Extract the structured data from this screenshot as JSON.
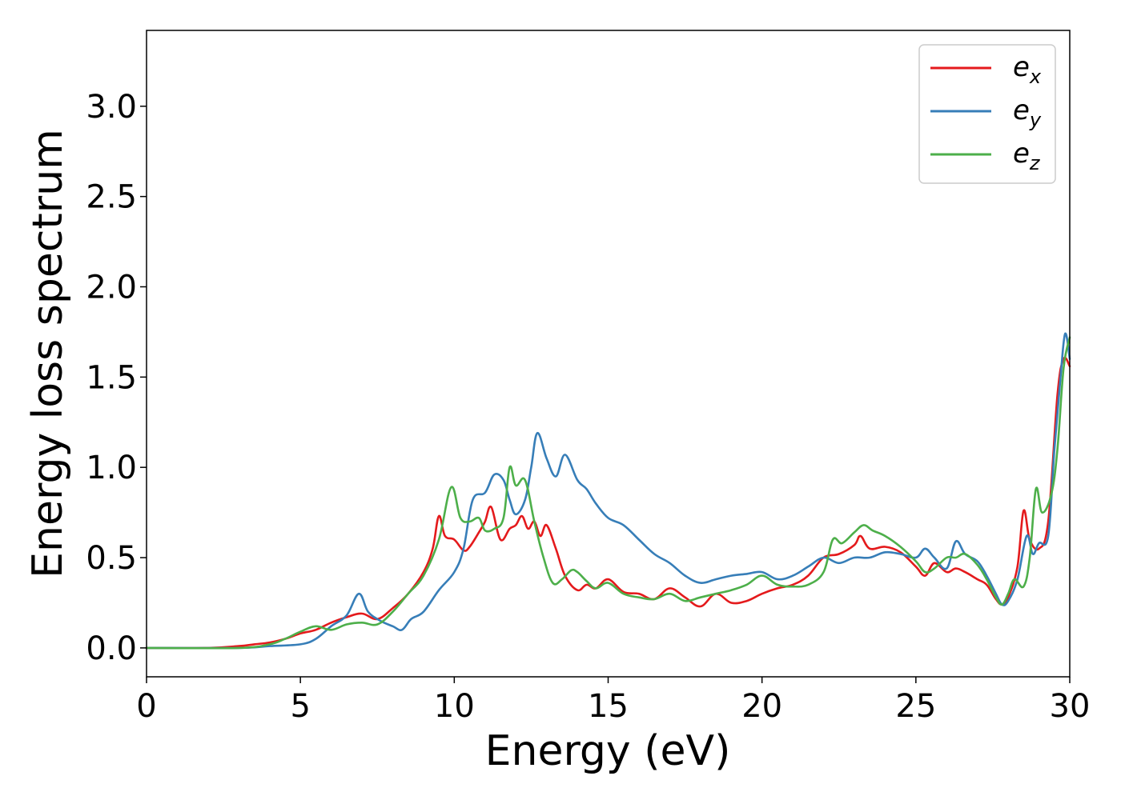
{
  "chart_data": {
    "type": "line",
    "xlabel": "Energy (eV)",
    "ylabel": "Energy loss spectrum",
    "xlim": [
      0,
      30
    ],
    "ylim": [
      -0.16,
      3.42
    ],
    "xticks": [
      "0",
      "5",
      "10",
      "15",
      "20",
      "25",
      "30"
    ],
    "yticks": [
      "0.0",
      "0.5",
      "1.0",
      "1.5",
      "2.0",
      "2.5",
      "3.0"
    ],
    "grid": false,
    "legend_position": "top-right",
    "series": [
      {
        "name": "e_x",
        "label_base": "e",
        "label_sub": "x",
        "color": "#e41a1c",
        "x": [
          0,
          2,
          3,
          3.5,
          4,
          4.5,
          5,
          5.5,
          6,
          6.5,
          7,
          7.5,
          8,
          8.5,
          9,
          9.3,
          9.5,
          9.7,
          10,
          10.3,
          10.5,
          10.8,
          11,
          11.2,
          11.5,
          11.8,
          12,
          12.2,
          12.4,
          12.6,
          12.8,
          13,
          13.3,
          13.6,
          14,
          14.3,
          14.6,
          15,
          15.5,
          16,
          16.5,
          17,
          17.5,
          18,
          18.5,
          19,
          19.5,
          20,
          20.5,
          21,
          21.5,
          22,
          22.5,
          23,
          23.2,
          23.5,
          24,
          24.5,
          25,
          25.3,
          25.6,
          26,
          26.3,
          26.6,
          27,
          27.3,
          27.6,
          27.8,
          28,
          28.3,
          28.5,
          28.7,
          29,
          29.3,
          29.6,
          29.8,
          30
        ],
        "y": [
          0.0,
          0.0,
          0.01,
          0.02,
          0.03,
          0.05,
          0.08,
          0.1,
          0.14,
          0.17,
          0.19,
          0.16,
          0.22,
          0.3,
          0.42,
          0.55,
          0.73,
          0.62,
          0.6,
          0.54,
          0.56,
          0.64,
          0.7,
          0.78,
          0.6,
          0.66,
          0.68,
          0.73,
          0.66,
          0.7,
          0.62,
          0.68,
          0.55,
          0.4,
          0.32,
          0.35,
          0.33,
          0.38,
          0.31,
          0.3,
          0.27,
          0.33,
          0.28,
          0.23,
          0.3,
          0.25,
          0.26,
          0.3,
          0.33,
          0.35,
          0.4,
          0.5,
          0.52,
          0.57,
          0.62,
          0.55,
          0.56,
          0.53,
          0.45,
          0.4,
          0.47,
          0.42,
          0.44,
          0.42,
          0.38,
          0.35,
          0.27,
          0.24,
          0.28,
          0.45,
          0.76,
          0.6,
          0.55,
          0.7,
          1.4,
          1.6,
          1.56
        ]
      },
      {
        "name": "e_y",
        "label_base": "e",
        "label_sub": "y",
        "color": "#377eb8",
        "x": [
          0,
          3,
          4,
          5,
          5.5,
          6,
          6.5,
          6.9,
          7.2,
          7.6,
          8,
          8.3,
          8.6,
          9,
          9.5,
          10,
          10.3,
          10.6,
          11,
          11.3,
          11.6,
          11.8,
          12,
          12.3,
          12.5,
          12.7,
          13,
          13.3,
          13.6,
          14,
          14.3,
          14.6,
          15,
          15.5,
          16,
          16.5,
          17,
          17.5,
          18,
          18.5,
          19,
          19.5,
          20,
          20.5,
          21,
          21.5,
          22,
          22.5,
          23,
          23.5,
          24,
          24.5,
          25,
          25.3,
          25.6,
          26,
          26.3,
          26.6,
          27,
          27.3,
          27.6,
          27.8,
          28,
          28.3,
          28.6,
          28.8,
          29,
          29.3,
          29.5,
          29.7,
          29.85,
          30
        ],
        "y": [
          0.0,
          0.0,
          0.01,
          0.02,
          0.05,
          0.12,
          0.18,
          0.3,
          0.2,
          0.15,
          0.12,
          0.1,
          0.16,
          0.2,
          0.32,
          0.42,
          0.55,
          0.82,
          0.86,
          0.96,
          0.93,
          0.82,
          0.74,
          0.82,
          1.0,
          1.19,
          1.05,
          0.95,
          1.07,
          0.93,
          0.88,
          0.8,
          0.72,
          0.68,
          0.6,
          0.52,
          0.47,
          0.4,
          0.36,
          0.38,
          0.4,
          0.41,
          0.42,
          0.38,
          0.4,
          0.45,
          0.5,
          0.47,
          0.5,
          0.5,
          0.53,
          0.52,
          0.5,
          0.55,
          0.5,
          0.44,
          0.59,
          0.52,
          0.48,
          0.4,
          0.3,
          0.24,
          0.26,
          0.38,
          0.62,
          0.52,
          0.58,
          0.62,
          1.1,
          1.5,
          1.74,
          1.6
        ]
      },
      {
        "name": "e_z",
        "label_base": "e",
        "label_sub": "z",
        "color": "#4daf4a",
        "x": [
          0,
          3,
          4,
          4.5,
          5,
          5.5,
          6,
          6.5,
          7,
          7.5,
          8,
          8.5,
          9,
          9.5,
          9.9,
          10.2,
          10.5,
          10.8,
          11,
          11.3,
          11.6,
          11.8,
          12,
          12.3,
          12.6,
          12.9,
          13.2,
          13.5,
          13.8,
          14,
          14.3,
          14.6,
          15,
          15.5,
          16,
          16.5,
          17,
          17.5,
          18,
          18.5,
          19,
          19.5,
          20,
          20.5,
          21,
          21.5,
          22,
          22.3,
          22.6,
          23,
          23.3,
          23.6,
          24,
          24.5,
          25,
          25.3,
          25.6,
          26,
          26.3,
          26.6,
          27,
          27.3,
          27.6,
          27.8,
          28,
          28.2,
          28.5,
          28.7,
          28.9,
          29.1,
          29.4,
          29.6,
          29.8,
          30
        ],
        "y": [
          0.0,
          0.0,
          0.02,
          0.05,
          0.09,
          0.12,
          0.1,
          0.13,
          0.14,
          0.13,
          0.2,
          0.3,
          0.4,
          0.6,
          0.89,
          0.72,
          0.7,
          0.72,
          0.65,
          0.66,
          0.72,
          1.0,
          0.9,
          0.93,
          0.7,
          0.5,
          0.36,
          0.38,
          0.43,
          0.42,
          0.37,
          0.33,
          0.36,
          0.3,
          0.28,
          0.27,
          0.3,
          0.26,
          0.28,
          0.3,
          0.32,
          0.35,
          0.4,
          0.35,
          0.34,
          0.35,
          0.42,
          0.6,
          0.58,
          0.64,
          0.68,
          0.65,
          0.62,
          0.56,
          0.48,
          0.42,
          0.44,
          0.5,
          0.5,
          0.52,
          0.46,
          0.38,
          0.28,
          0.24,
          0.3,
          0.38,
          0.34,
          0.5,
          0.88,
          0.75,
          0.85,
          1.1,
          1.55,
          1.72
        ]
      }
    ]
  }
}
